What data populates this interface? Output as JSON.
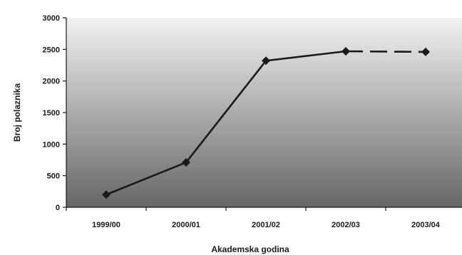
{
  "chart_data": {
    "type": "line",
    "title": "",
    "xlabel": "Akademska godina",
    "ylabel": "Broj polaznika",
    "categories": [
      "1999/00",
      "2000/01",
      "2001/02",
      "2002/03",
      "2003/04"
    ],
    "series": [
      {
        "values": [
          200,
          710,
          2320,
          2470,
          2460
        ],
        "dashed_from_index": 3
      }
    ],
    "ylim": [
      0,
      3000
    ],
    "yticks": [
      0,
      500,
      1000,
      1500,
      2000,
      2500,
      3000
    ],
    "yticklabels": [
      "0",
      "500",
      "1000",
      "1500",
      "2000",
      "2500",
      "3000"
    ],
    "grid": false,
    "legend": "none",
    "marker": "diamond",
    "colors": {
      "line": "#1a1a1a",
      "plot_top": "#f2f2f2",
      "plot_bottom": "#666666"
    }
  }
}
